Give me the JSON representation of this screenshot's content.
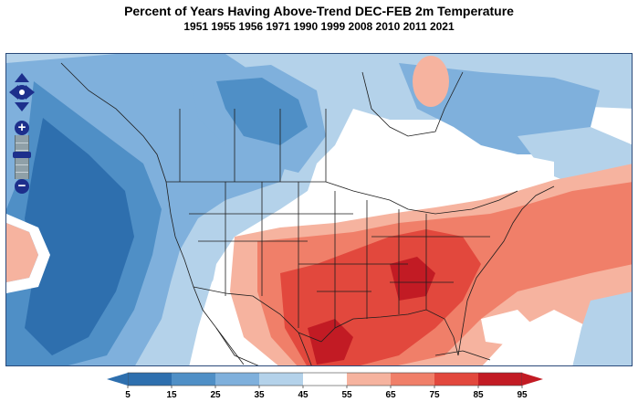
{
  "title": "Percent of Years Having Above-Trend DEC-FEB 2m Temperature",
  "subtitle": "1951 1955 1956 1971 1990 1999 2008 2010 2011 2021",
  "colorbar": {
    "ticks": [
      "5",
      "15",
      "25",
      "35",
      "45",
      "55",
      "65",
      "75",
      "85",
      "95"
    ],
    "colors": [
      "#2e6fae",
      "#4f8fc6",
      "#7fb0dc",
      "#b4d2ea",
      "#ffffff",
      "#f6b39f",
      "#f07f69",
      "#e2483d",
      "#c21b24"
    ],
    "extend_low_color": "#2e6fae",
    "extend_high_color": "#c21b24"
  },
  "map": {
    "base_color": "#ffffff",
    "line_color": "#1e1e1e",
    "regions": "percent-of-years-above-trend"
  },
  "controls": {
    "pan": "pan-arrows-icon",
    "zoom_in": "+",
    "zoom_out": "−"
  }
}
